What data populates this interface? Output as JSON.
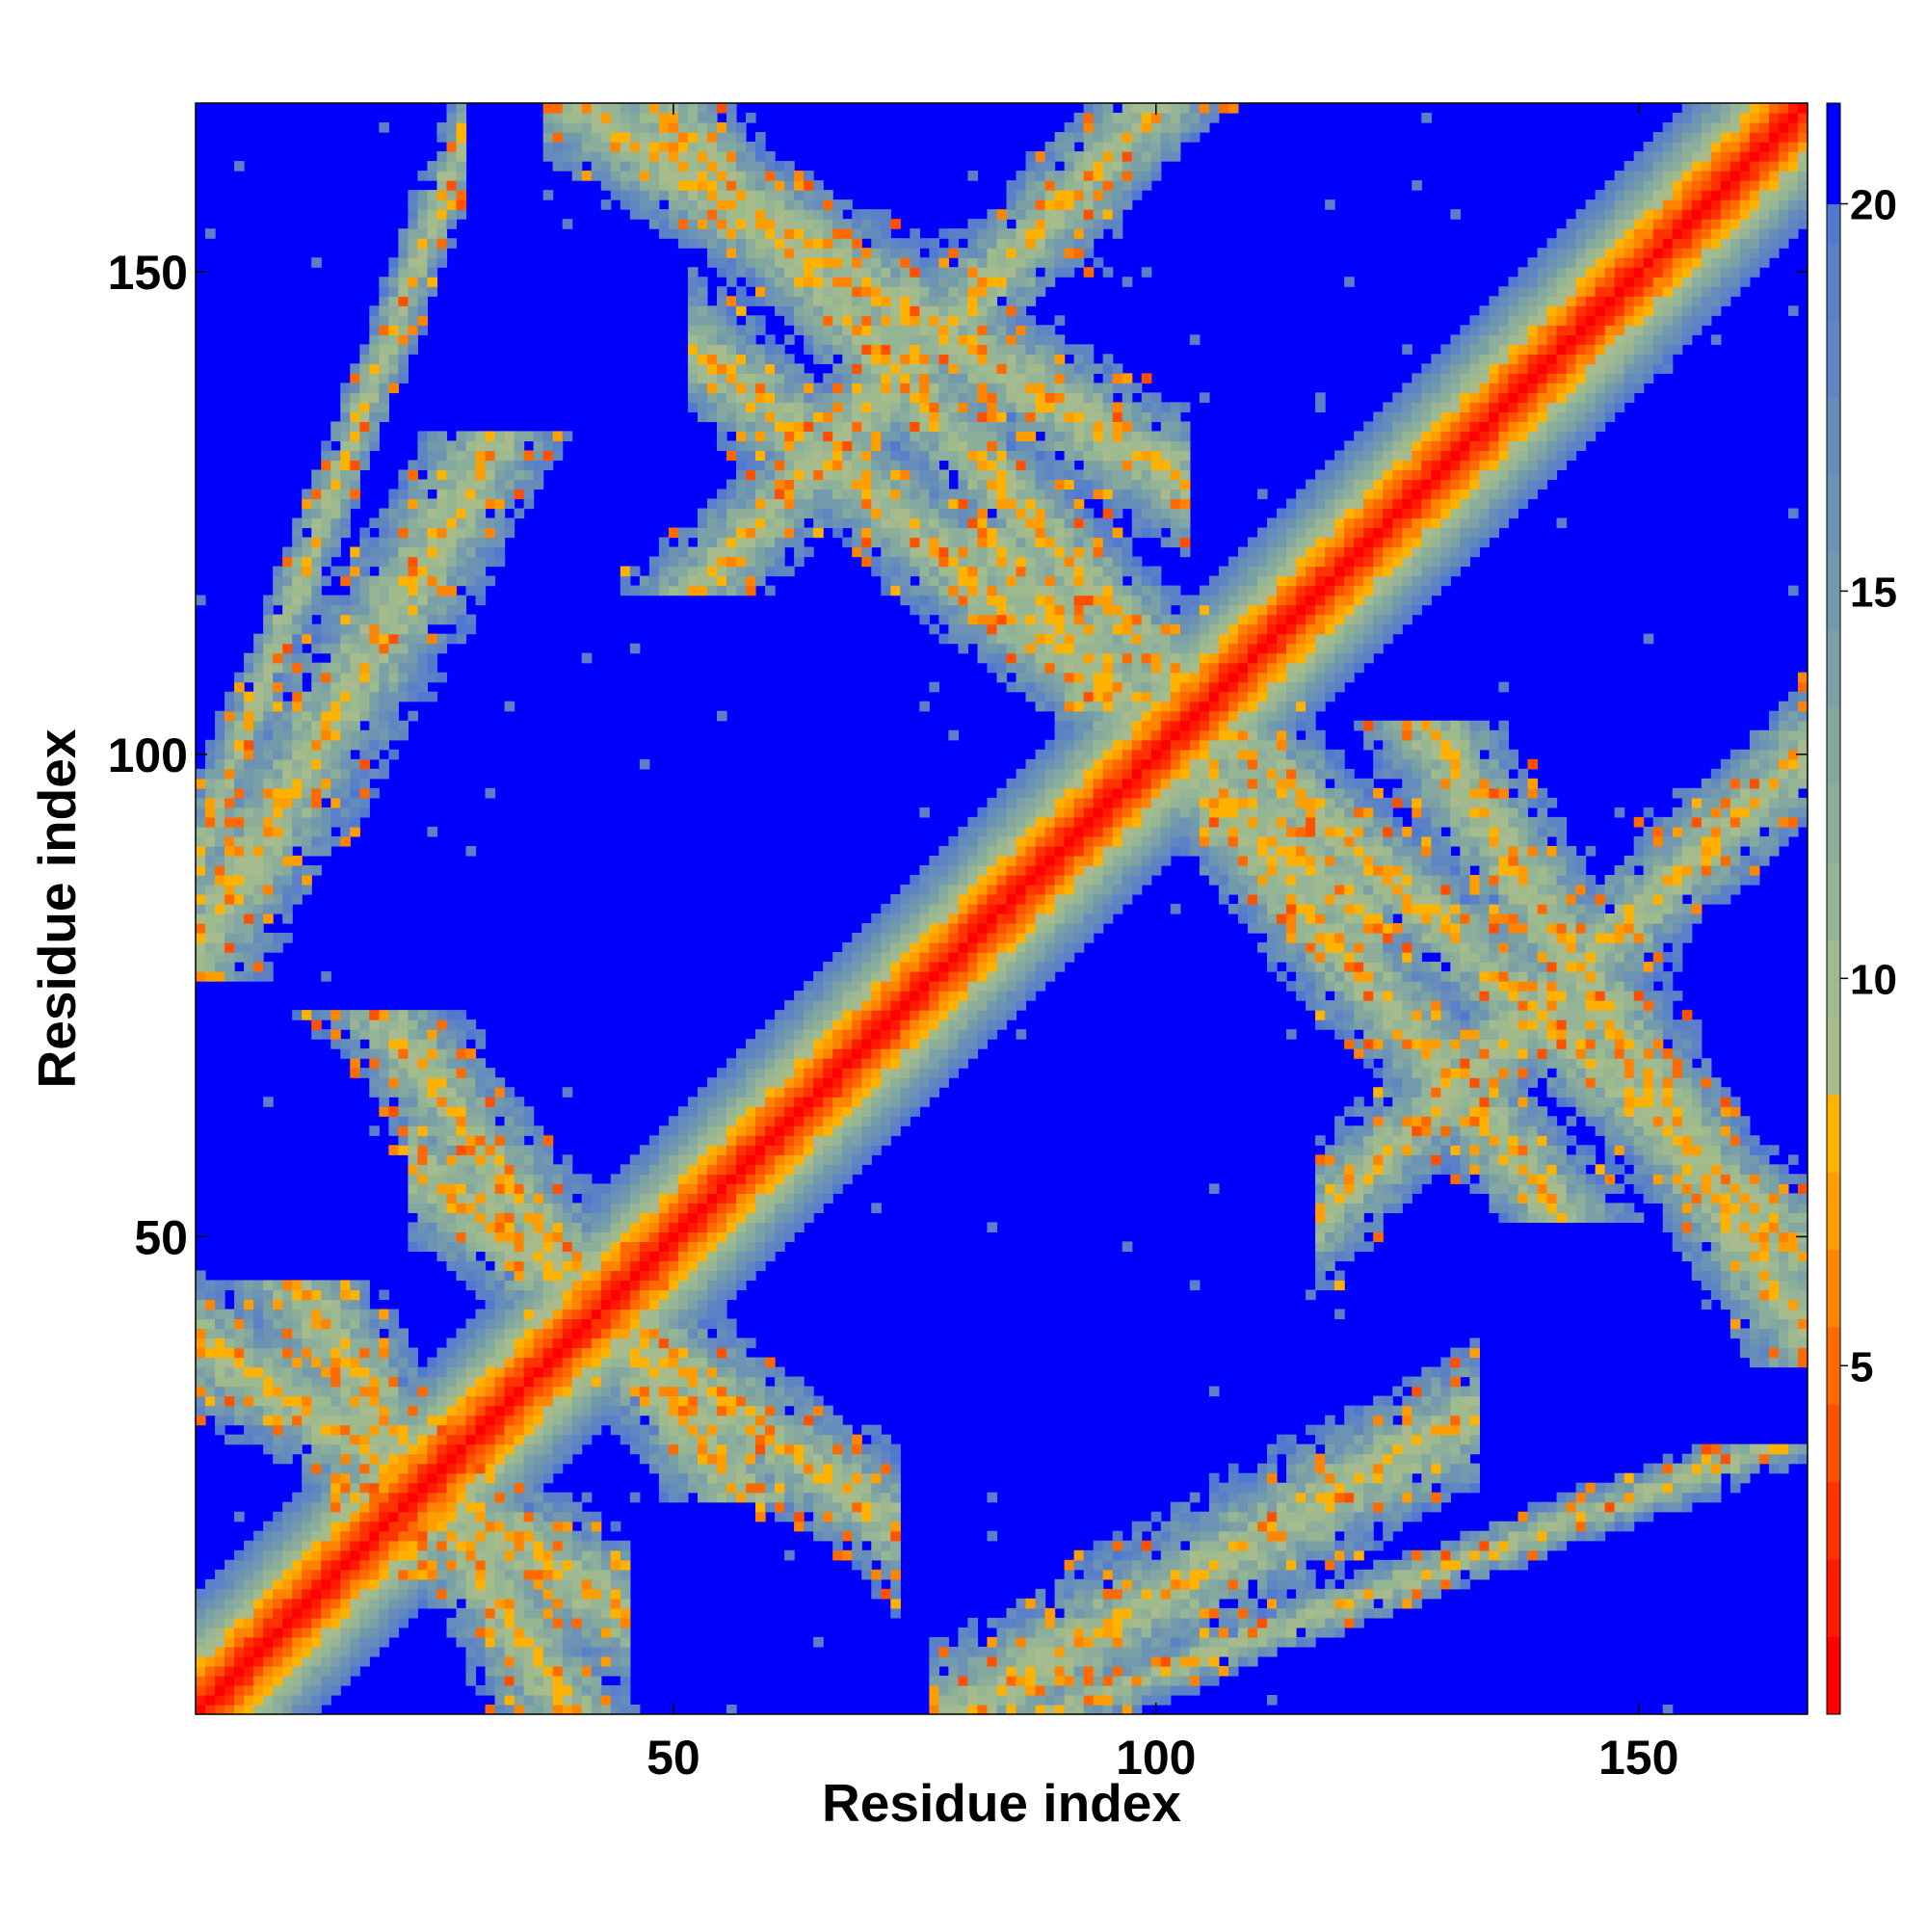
{
  "chart_data": {
    "type": "heatmap",
    "title": "",
    "xlabel": "Residue index",
    "ylabel": "Residue index",
    "n_residues": 167,
    "x_range": [
      1,
      167
    ],
    "y_range": [
      1,
      167
    ],
    "x_ticks": [
      50,
      100,
      150
    ],
    "y_ticks": [
      50,
      100,
      150
    ],
    "x_tick_labels": [
      "50",
      "100",
      "150"
    ],
    "y_tick_labels": [
      "50",
      "100",
      "150"
    ],
    "value_range": [
      0.5,
      21.3
    ],
    "colorbar": {
      "ticks": [
        5,
        10,
        15,
        20
      ],
      "tick_labels": [
        "5",
        "10",
        "15",
        "20"
      ],
      "levels": [
        {
          "max": 1.5,
          "color": "#ff0000"
        },
        {
          "max": 2.5,
          "color": "#ff1a00"
        },
        {
          "max": 3.5,
          "color": "#ff3300"
        },
        {
          "max": 4.5,
          "color": "#ff5000"
        },
        {
          "max": 5.5,
          "color": "#ff6a00"
        },
        {
          "max": 6.5,
          "color": "#ff8400"
        },
        {
          "max": 7.5,
          "color": "#ff9e00"
        },
        {
          "max": 8.5,
          "color": "#ffb300"
        },
        {
          "max": 9.5,
          "color": "#a8bb8c"
        },
        {
          "max": 10.5,
          "color": "#9fba8c"
        },
        {
          "max": 11.5,
          "color": "#95b594"
        },
        {
          "max": 12.5,
          "color": "#8cae9a"
        },
        {
          "max": 13.5,
          "color": "#84a8a0"
        },
        {
          "max": 14.5,
          "color": "#7ba1a6"
        },
        {
          "max": 15.5,
          "color": "#7399ad"
        },
        {
          "max": 16.5,
          "color": "#6c92b4"
        },
        {
          "max": 17.5,
          "color": "#658cbb"
        },
        {
          "max": 18.5,
          "color": "#5f86c2"
        },
        {
          "max": 19.5,
          "color": "#5a80c8"
        },
        {
          "max": 20.0,
          "color": "#507ad0"
        },
        {
          "max": 99,
          "color": "#0000ff"
        }
      ]
    },
    "description_of_matrix": {
      "diagonal_band_halfwidth": 10,
      "contact_bands": [
        {
          "i_range": [
            1,
            42
          ],
          "j_range": [
            13,
            39
          ],
          "kind": "antiparallel"
        },
        {
          "i_range": [
            26,
            70
          ],
          "j_range": [
            22,
            55
          ],
          "kind": "antiparallel"
        },
        {
          "i_range": [
            55,
            120
          ],
          "j_range": [
            85,
            140
          ],
          "kind": "antiparallel"
        },
        {
          "i_range": [
            110,
            165
          ],
          "j_range": [
            50,
            100
          ],
          "kind": "antiparallel"
        },
        {
          "i_range": [
            40,
            100
          ],
          "j_range": [
            130,
            167
          ],
          "kind": "antiparallel"
        },
        {
          "i_range": [
            1,
            25
          ],
          "j_range": [
            90,
            155
          ],
          "kind": "parallel"
        },
        {
          "i_range": [
            80,
            130
          ],
          "j_range": [
            1,
            30
          ],
          "kind": "parallel"
        },
        {
          "i_range": [
            120,
            167
          ],
          "j_range": [
            55,
            100
          ],
          "kind": "parallel"
        }
      ]
    }
  }
}
